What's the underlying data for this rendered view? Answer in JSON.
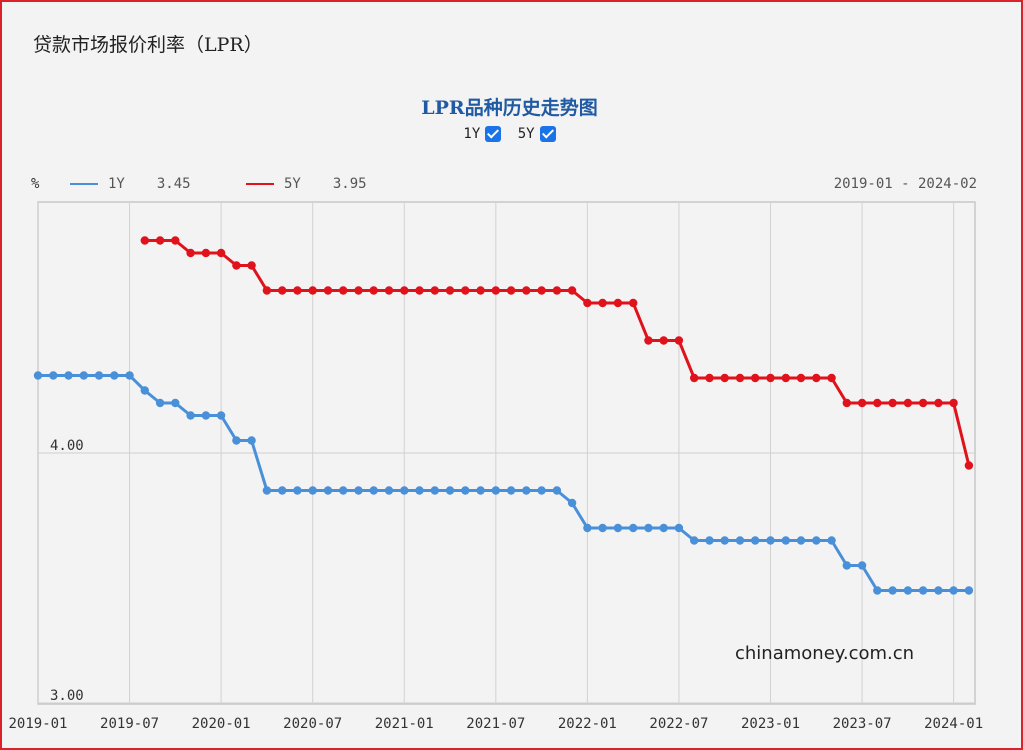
{
  "page_title": "贷款市场报价利率（LPR）",
  "chart_title": "LPR品种历史走势图",
  "toggles": [
    {
      "label": "1Y",
      "checked": true
    },
    {
      "label": "5Y",
      "checked": true
    }
  ],
  "unit_label": "%",
  "legend": {
    "y1": {
      "name": "1Y",
      "value": "3.45",
      "color": "#4a90d9"
    },
    "y5": {
      "name": "5Y",
      "value": "3.95",
      "color": "#e0121b"
    }
  },
  "date_range": "2019-01 - 2024-02",
  "watermark": "chinamoney.com.cn",
  "chart_data": {
    "type": "line",
    "y_ticks": [
      "4.00",
      "3.00"
    ],
    "x_ticks": [
      "2019-01",
      "2019-07",
      "2020-01",
      "2020-07",
      "2021-01",
      "2021-07",
      "2022-01",
      "2022-07",
      "2023-01",
      "2023-07",
      "2024-01"
    ],
    "series": [
      {
        "name": "1Y",
        "color": "#4a90d9",
        "points": [
          [
            "2019-01",
            4.31
          ],
          [
            "2019-02",
            4.31
          ],
          [
            "2019-03",
            4.31
          ],
          [
            "2019-04",
            4.31
          ],
          [
            "2019-05",
            4.31
          ],
          [
            "2019-06",
            4.31
          ],
          [
            "2019-07",
            4.31
          ],
          [
            "2019-08",
            4.25
          ],
          [
            "2019-09",
            4.2
          ],
          [
            "2019-10",
            4.2
          ],
          [
            "2019-11",
            4.15
          ],
          [
            "2019-12",
            4.15
          ],
          [
            "2020-01",
            4.15
          ],
          [
            "2020-02",
            4.05
          ],
          [
            "2020-03",
            4.05
          ],
          [
            "2020-04",
            3.85
          ],
          [
            "2020-05",
            3.85
          ],
          [
            "2020-06",
            3.85
          ],
          [
            "2020-07",
            3.85
          ],
          [
            "2020-08",
            3.85
          ],
          [
            "2020-09",
            3.85
          ],
          [
            "2020-10",
            3.85
          ],
          [
            "2020-11",
            3.85
          ],
          [
            "2020-12",
            3.85
          ],
          [
            "2021-01",
            3.85
          ],
          [
            "2021-02",
            3.85
          ],
          [
            "2021-03",
            3.85
          ],
          [
            "2021-04",
            3.85
          ],
          [
            "2021-05",
            3.85
          ],
          [
            "2021-06",
            3.85
          ],
          [
            "2021-07",
            3.85
          ],
          [
            "2021-08",
            3.85
          ],
          [
            "2021-09",
            3.85
          ],
          [
            "2021-10",
            3.85
          ],
          [
            "2021-11",
            3.85
          ],
          [
            "2021-12",
            3.8
          ],
          [
            "2022-01",
            3.7
          ],
          [
            "2022-02",
            3.7
          ],
          [
            "2022-03",
            3.7
          ],
          [
            "2022-04",
            3.7
          ],
          [
            "2022-05",
            3.7
          ],
          [
            "2022-06",
            3.7
          ],
          [
            "2022-07",
            3.7
          ],
          [
            "2022-08",
            3.65
          ],
          [
            "2022-09",
            3.65
          ],
          [
            "2022-10",
            3.65
          ],
          [
            "2022-11",
            3.65
          ],
          [
            "2022-12",
            3.65
          ],
          [
            "2023-01",
            3.65
          ],
          [
            "2023-02",
            3.65
          ],
          [
            "2023-03",
            3.65
          ],
          [
            "2023-04",
            3.65
          ],
          [
            "2023-05",
            3.65
          ],
          [
            "2023-06",
            3.55
          ],
          [
            "2023-07",
            3.55
          ],
          [
            "2023-08",
            3.45
          ],
          [
            "2023-09",
            3.45
          ],
          [
            "2023-10",
            3.45
          ],
          [
            "2023-11",
            3.45
          ],
          [
            "2023-12",
            3.45
          ],
          [
            "2024-01",
            3.45
          ],
          [
            "2024-02",
            3.45
          ]
        ]
      },
      {
        "name": "5Y",
        "color": "#e0121b",
        "points": [
          [
            "2019-08",
            4.85
          ],
          [
            "2019-09",
            4.85
          ],
          [
            "2019-10",
            4.85
          ],
          [
            "2019-11",
            4.8
          ],
          [
            "2019-12",
            4.8
          ],
          [
            "2020-01",
            4.8
          ],
          [
            "2020-02",
            4.75
          ],
          [
            "2020-03",
            4.75
          ],
          [
            "2020-04",
            4.65
          ],
          [
            "2020-05",
            4.65
          ],
          [
            "2020-06",
            4.65
          ],
          [
            "2020-07",
            4.65
          ],
          [
            "2020-08",
            4.65
          ],
          [
            "2020-09",
            4.65
          ],
          [
            "2020-10",
            4.65
          ],
          [
            "2020-11",
            4.65
          ],
          [
            "2020-12",
            4.65
          ],
          [
            "2021-01",
            4.65
          ],
          [
            "2021-02",
            4.65
          ],
          [
            "2021-03",
            4.65
          ],
          [
            "2021-04",
            4.65
          ],
          [
            "2021-05",
            4.65
          ],
          [
            "2021-06",
            4.65
          ],
          [
            "2021-07",
            4.65
          ],
          [
            "2021-08",
            4.65
          ],
          [
            "2021-09",
            4.65
          ],
          [
            "2021-10",
            4.65
          ],
          [
            "2021-11",
            4.65
          ],
          [
            "2021-12",
            4.65
          ],
          [
            "2022-01",
            4.6
          ],
          [
            "2022-02",
            4.6
          ],
          [
            "2022-03",
            4.6
          ],
          [
            "2022-04",
            4.6
          ],
          [
            "2022-05",
            4.45
          ],
          [
            "2022-06",
            4.45
          ],
          [
            "2022-07",
            4.45
          ],
          [
            "2022-08",
            4.3
          ],
          [
            "2022-09",
            4.3
          ],
          [
            "2022-10",
            4.3
          ],
          [
            "2022-11",
            4.3
          ],
          [
            "2022-12",
            4.3
          ],
          [
            "2023-01",
            4.3
          ],
          [
            "2023-02",
            4.3
          ],
          [
            "2023-03",
            4.3
          ],
          [
            "2023-04",
            4.3
          ],
          [
            "2023-05",
            4.3
          ],
          [
            "2023-06",
            4.2
          ],
          [
            "2023-07",
            4.2
          ],
          [
            "2023-08",
            4.2
          ],
          [
            "2023-09",
            4.2
          ],
          [
            "2023-10",
            4.2
          ],
          [
            "2023-11",
            4.2
          ],
          [
            "2023-12",
            4.2
          ],
          [
            "2024-01",
            4.2
          ],
          [
            "2024-02",
            3.95
          ]
        ]
      }
    ]
  }
}
